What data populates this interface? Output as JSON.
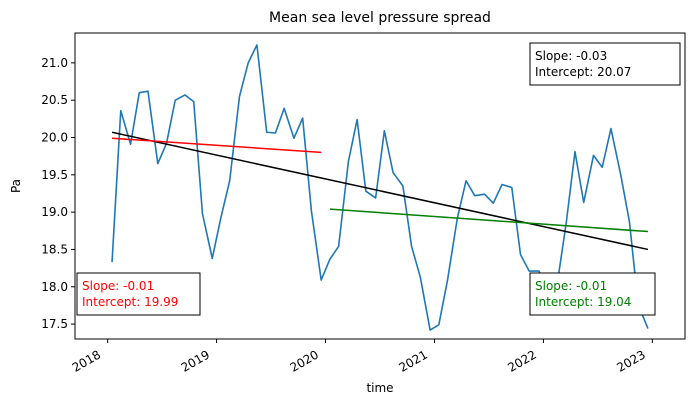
{
  "chart_data": {
    "type": "line",
    "title": "Mean sea level pressure spread",
    "xlabel": "time",
    "ylabel": "Pa",
    "xlim": [
      2017.7,
      2023.3
    ],
    "ylim": [
      17.3,
      21.4
    ],
    "x_ticks": [
      2018,
      2019,
      2020,
      2021,
      2022,
      2023
    ],
    "x_tick_labels": [
      "2018",
      "2019",
      "2020",
      "2021",
      "2022",
      "2023"
    ],
    "y_ticks": [
      17.5,
      18.0,
      18.5,
      19.0,
      19.5,
      20.0,
      20.5,
      21.0
    ],
    "y_tick_labels": [
      "17.5",
      "18.0",
      "18.5",
      "19.0",
      "19.5",
      "20.0",
      "20.5",
      "21.0"
    ],
    "grid": false,
    "series": [
      {
        "color": "#1f77b4",
        "x": [
          2018.04,
          2018.12,
          2018.21,
          2018.29,
          2018.37,
          2018.46,
          2018.54,
          2018.62,
          2018.71,
          2018.79,
          2018.87,
          2018.96,
          2019.04,
          2019.12,
          2019.21,
          2019.29,
          2019.37,
          2019.46,
          2019.54,
          2019.62,
          2019.71,
          2019.79,
          2019.87,
          2019.96,
          2020.04,
          2020.12,
          2020.21,
          2020.29,
          2020.37,
          2020.46,
          2020.54,
          2020.62,
          2020.71,
          2020.79,
          2020.87,
          2020.96,
          2021.04,
          2021.12,
          2021.21,
          2021.29,
          2021.37,
          2021.46,
          2021.54,
          2021.62,
          2021.71,
          2021.79,
          2021.87,
          2021.96,
          2022.04,
          2022.12,
          2022.21,
          2022.29,
          2022.37,
          2022.46,
          2022.54,
          2022.62,
          2022.71,
          2022.79,
          2022.87,
          2022.96
        ],
        "y": [
          18.33,
          20.36,
          19.91,
          20.6,
          20.62,
          19.65,
          19.92,
          20.5,
          20.57,
          20.48,
          18.98,
          18.38,
          18.93,
          19.42,
          20.55,
          21.0,
          21.24,
          20.07,
          20.06,
          20.39,
          19.99,
          20.26,
          19.02,
          18.09,
          18.37,
          18.54,
          19.68,
          20.24,
          19.28,
          19.19,
          20.09,
          19.53,
          19.35,
          18.54,
          18.13,
          17.42,
          17.49,
          18.09,
          18.92,
          19.42,
          19.22,
          19.24,
          19.12,
          19.37,
          19.33,
          18.43,
          18.21,
          18.21,
          17.92,
          17.97,
          18.86,
          19.81,
          19.13,
          19.76,
          19.6,
          20.12,
          19.5,
          18.87,
          17.76,
          17.44
        ]
      },
      {
        "color": "#000000",
        "x": [
          2018.04,
          2022.96
        ],
        "y": [
          20.07,
          18.5
        ]
      },
      {
        "color": "#ff0000",
        "x": [
          2018.04,
          2019.96
        ],
        "y": [
          19.99,
          19.8
        ]
      },
      {
        "color": "#008000",
        "x": [
          2020.04,
          2022.96
        ],
        "y": [
          19.04,
          18.74
        ]
      }
    ],
    "annotations": [
      {
        "id": "black",
        "lines": [
          "Slope: -0.03",
          "Intercept: 20.07"
        ],
        "color": "#000000"
      },
      {
        "id": "red",
        "lines": [
          "Slope: -0.01",
          "Intercept: 19.99"
        ],
        "color": "#ff0000"
      },
      {
        "id": "green",
        "lines": [
          "Slope: -0.01",
          "Intercept: 19.04"
        ],
        "color": "#008000"
      }
    ]
  }
}
